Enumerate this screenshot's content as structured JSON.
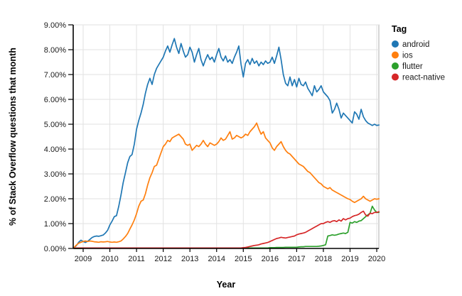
{
  "legend": {
    "title": "Tag",
    "items": [
      {
        "label": "android",
        "color": "#1f77b4"
      },
      {
        "label": "ios",
        "color": "#ff7f0e"
      },
      {
        "label": "flutter",
        "color": "#2ca02c"
      },
      {
        "label": "react-native",
        "color": "#d62728"
      }
    ]
  },
  "chart_data": {
    "type": "line",
    "title": "",
    "xlabel": "Year",
    "ylabel": "% of Stack Overflow questions that month",
    "x_tick_labels": [
      "2009",
      "2010",
      "2011",
      "2012",
      "2013",
      "2014",
      "2015",
      "2016",
      "2017",
      "2018",
      "2019",
      "2020"
    ],
    "y_tick_labels": [
      "0.00%",
      "1.00%",
      "2.00%",
      "3.00%",
      "4.00%",
      "5.00%",
      "6.00%",
      "7.00%",
      "8.00%",
      "9.00%"
    ],
    "ylim": [
      0,
      9
    ],
    "xlim_decimal_years": [
      2008.6667,
      2020.15
    ],
    "grid": true,
    "legend_position": "right",
    "x_start": "2008-09",
    "x_frequency": "monthly",
    "x_start_decimal_year": 2008.6667,
    "series": [
      {
        "name": "android",
        "color": "#1f77b4",
        "values": [
          0.03,
          0.12,
          0.25,
          0.33,
          0.28,
          0.24,
          0.29,
          0.36,
          0.44,
          0.48,
          0.5,
          0.49,
          0.51,
          0.54,
          0.62,
          0.73,
          0.95,
          1.1,
          1.28,
          1.32,
          1.7,
          2.15,
          2.65,
          3.05,
          3.45,
          3.7,
          3.78,
          4.2,
          4.8,
          5.15,
          5.45,
          5.8,
          6.25,
          6.6,
          6.85,
          6.6,
          7.0,
          7.25,
          7.4,
          7.55,
          7.7,
          7.95,
          8.15,
          7.9,
          8.2,
          8.45,
          8.1,
          7.85,
          8.25,
          7.95,
          7.7,
          7.8,
          8.1,
          7.9,
          7.5,
          7.8,
          8.05,
          7.6,
          7.35,
          7.6,
          7.8,
          7.6,
          7.7,
          7.5,
          7.8,
          8.05,
          7.7,
          7.55,
          7.75,
          7.5,
          7.6,
          7.45,
          7.7,
          7.9,
          8.15,
          7.4,
          6.9,
          7.45,
          7.6,
          7.4,
          7.65,
          7.45,
          7.55,
          7.35,
          7.5,
          7.4,
          7.55,
          7.45,
          7.5,
          7.7,
          7.45,
          7.75,
          8.1,
          7.6,
          7.0,
          6.65,
          6.55,
          6.9,
          6.55,
          6.8,
          6.5,
          6.85,
          6.6,
          6.55,
          6.7,
          6.45,
          6.3,
          6.15,
          6.55,
          6.3,
          6.4,
          6.55,
          6.3,
          6.2,
          6.1,
          5.95,
          5.45,
          5.6,
          5.85,
          5.6,
          5.25,
          5.45,
          5.35,
          5.25,
          5.15,
          5.05,
          5.5,
          5.4,
          5.2,
          5.6,
          5.3,
          5.15,
          5.05,
          5.0,
          4.95,
          5.0,
          4.95,
          4.97
        ]
      },
      {
        "name": "ios",
        "color": "#ff7f0e",
        "values": [
          0.05,
          0.14,
          0.21,
          0.25,
          0.28,
          0.3,
          0.28,
          0.3,
          0.29,
          0.27,
          0.26,
          0.25,
          0.27,
          0.26,
          0.27,
          0.28,
          0.26,
          0.25,
          0.26,
          0.25,
          0.27,
          0.3,
          0.38,
          0.48,
          0.6,
          0.78,
          0.95,
          1.15,
          1.4,
          1.7,
          1.9,
          1.95,
          2.2,
          2.55,
          2.85,
          3.05,
          3.3,
          3.35,
          3.6,
          3.85,
          4.1,
          4.2,
          4.35,
          4.3,
          4.45,
          4.5,
          4.55,
          4.6,
          4.5,
          4.4,
          4.2,
          4.15,
          4.2,
          3.95,
          4.05,
          4.15,
          4.1,
          4.2,
          4.35,
          4.2,
          4.1,
          4.25,
          4.2,
          4.15,
          4.2,
          4.3,
          4.45,
          4.35,
          4.4,
          4.55,
          4.7,
          4.4,
          4.45,
          4.55,
          4.5,
          4.45,
          4.5,
          4.6,
          4.55,
          4.7,
          4.8,
          4.9,
          5.05,
          4.8,
          4.6,
          4.7,
          4.45,
          4.35,
          4.25,
          4.05,
          3.95,
          4.1,
          4.2,
          4.3,
          4.1,
          3.95,
          3.85,
          3.8,
          3.7,
          3.6,
          3.5,
          3.4,
          3.35,
          3.3,
          3.2,
          3.1,
          3.05,
          2.95,
          2.85,
          2.75,
          2.65,
          2.6,
          2.5,
          2.45,
          2.4,
          2.45,
          2.35,
          2.3,
          2.25,
          2.2,
          2.15,
          2.1,
          2.05,
          2.0,
          1.97,
          1.9,
          1.85,
          1.9,
          1.95,
          2.0,
          2.1,
          2.0,
          1.95,
          1.9,
          1.95,
          2.0,
          1.98,
          2.0
        ]
      },
      {
        "name": "flutter",
        "color": "#2ca02c",
        "values": [
          0.0,
          0.0,
          0.0,
          0.0,
          0.01,
          0.01,
          0.01,
          0.01,
          0.01,
          0.01,
          0.01,
          0.01,
          0.01,
          0.01,
          0.01,
          0.01,
          0.01,
          0.01,
          0.01,
          0.01,
          0.01,
          0.01,
          0.01,
          0.01,
          0.01,
          0.01,
          0.01,
          0.01,
          0.01,
          0.01,
          0.01,
          0.01,
          0.01,
          0.01,
          0.01,
          0.01,
          0.01,
          0.01,
          0.01,
          0.01,
          0.01,
          0.01,
          0.01,
          0.01,
          0.01,
          0.01,
          0.01,
          0.01,
          0.01,
          0.01,
          0.01,
          0.01,
          0.01,
          0.01,
          0.01,
          0.01,
          0.01,
          0.01,
          0.01,
          0.01,
          0.01,
          0.01,
          0.01,
          0.01,
          0.02,
          0.02,
          0.02,
          0.02,
          0.02,
          0.02,
          0.02,
          0.02,
          0.02,
          0.02,
          0.02,
          0.02,
          0.02,
          0.02,
          0.02,
          0.02,
          0.02,
          0.02,
          0.02,
          0.02,
          0.02,
          0.02,
          0.02,
          0.02,
          0.03,
          0.03,
          0.03,
          0.04,
          0.04,
          0.04,
          0.04,
          0.05,
          0.05,
          0.05,
          0.05,
          0.05,
          0.05,
          0.06,
          0.07,
          0.07,
          0.08,
          0.08,
          0.08,
          0.08,
          0.08,
          0.08,
          0.09,
          0.1,
          0.12,
          0.15,
          0.5,
          0.52,
          0.55,
          0.53,
          0.55,
          0.58,
          0.6,
          0.62,
          0.6,
          0.65,
          1.05,
          1.02,
          1.08,
          1.05,
          1.1,
          1.12,
          1.2,
          1.28,
          1.35,
          1.42,
          1.7,
          1.55,
          1.45,
          1.45
        ]
      },
      {
        "name": "react-native",
        "color": "#d62728",
        "values": [
          0.01,
          0.02,
          0.02,
          0.02,
          0.02,
          0.02,
          0.02,
          0.02,
          0.02,
          0.02,
          0.02,
          0.02,
          0.02,
          0.02,
          0.02,
          0.02,
          0.02,
          0.02,
          0.02,
          0.02,
          0.02,
          0.02,
          0.02,
          0.02,
          0.02,
          0.02,
          0.02,
          0.02,
          0.02,
          0.02,
          0.02,
          0.02,
          0.02,
          0.02,
          0.02,
          0.02,
          0.02,
          0.02,
          0.02,
          0.02,
          0.02,
          0.02,
          0.02,
          0.02,
          0.02,
          0.02,
          0.02,
          0.02,
          0.02,
          0.02,
          0.02,
          0.02,
          0.02,
          0.02,
          0.02,
          0.02,
          0.02,
          0.02,
          0.02,
          0.02,
          0.02,
          0.02,
          0.02,
          0.02,
          0.02,
          0.02,
          0.02,
          0.02,
          0.02,
          0.02,
          0.02,
          0.02,
          0.02,
          0.02,
          0.02,
          0.02,
          0.03,
          0.04,
          0.06,
          0.08,
          0.1,
          0.12,
          0.13,
          0.15,
          0.18,
          0.2,
          0.22,
          0.24,
          0.28,
          0.32,
          0.36,
          0.4,
          0.42,
          0.45,
          0.43,
          0.42,
          0.44,
          0.46,
          0.48,
          0.5,
          0.55,
          0.58,
          0.6,
          0.62,
          0.65,
          0.7,
          0.75,
          0.8,
          0.85,
          0.9,
          0.95,
          1.0,
          1.0,
          1.05,
          1.08,
          1.05,
          1.1,
          1.12,
          1.08,
          1.15,
          1.1,
          1.2,
          1.15,
          1.2,
          1.22,
          1.28,
          1.32,
          1.34,
          1.38,
          1.45,
          1.5,
          1.35,
          1.3,
          1.42,
          1.4,
          1.45,
          1.45,
          1.48
        ]
      }
    ]
  }
}
